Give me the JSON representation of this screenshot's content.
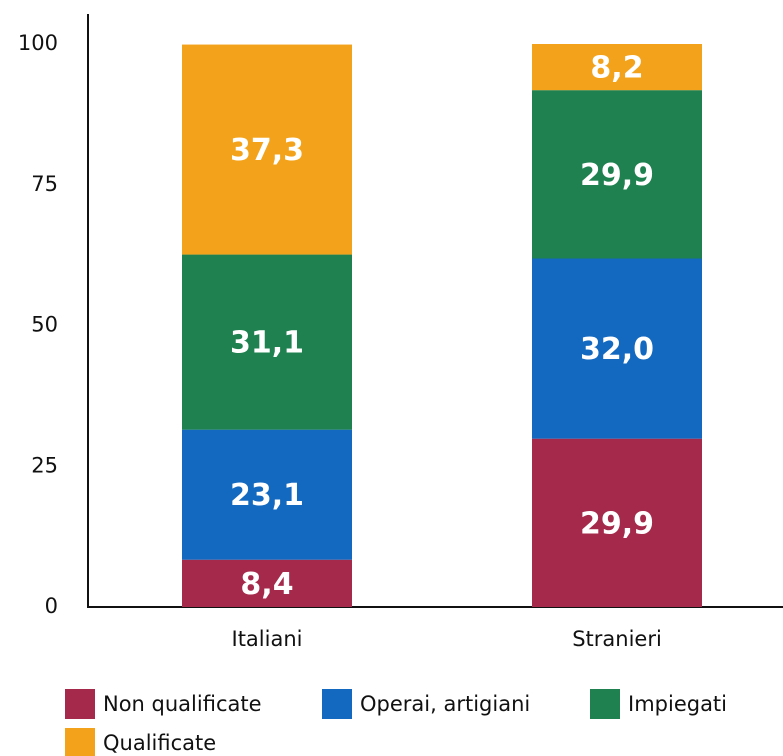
{
  "chart_data": {
    "type": "bar",
    "stacked": true,
    "categories": [
      "Italiani",
      "Stranieri"
    ],
    "series": [
      {
        "name": "Non qualificate",
        "color": "#a4294b",
        "values": [
          8.4,
          29.9
        ],
        "value_labels": [
          "8,4",
          "29,9"
        ]
      },
      {
        "name": "Operai, artigiani",
        "color": "#1368bf",
        "values": [
          23.1,
          32.0
        ],
        "value_labels": [
          "23,1",
          "32,0"
        ]
      },
      {
        "name": "Impiegati",
        "color": "#1f8150",
        "values": [
          31.1,
          29.9
        ],
        "value_labels": [
          "31,1",
          "29,9"
        ]
      },
      {
        "name": "Qualificate",
        "color": "#f3a31b",
        "values": [
          37.3,
          8.2
        ],
        "value_labels": [
          "37,3",
          "8,2"
        ]
      }
    ],
    "ylim": [
      0,
      100
    ],
    "yticks": [
      0,
      25,
      50,
      75,
      100
    ],
    "grid": false,
    "legend": "bottom"
  }
}
